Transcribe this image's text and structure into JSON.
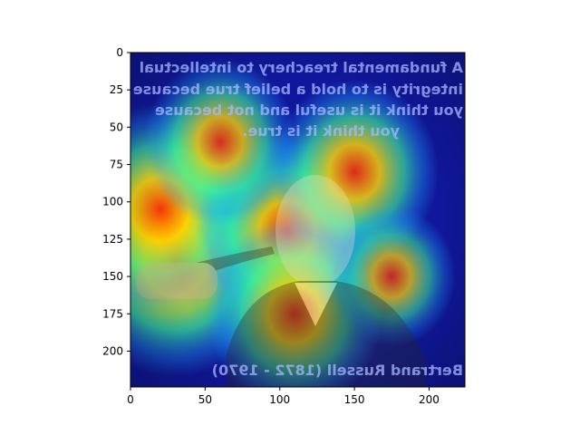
{
  "chart_data": {
    "type": "heatmap",
    "title": "",
    "xlabel": "",
    "ylabel": "",
    "xlim": [
      0,
      224
    ],
    "ylim": [
      224,
      0
    ],
    "x_ticks": [
      0,
      50,
      100,
      150,
      200
    ],
    "y_ticks": [
      0,
      25,
      50,
      75,
      100,
      125,
      150,
      175,
      200
    ],
    "grid": false,
    "colormap": "jet",
    "image_description": "Saliency heatmap (jet colormap) overlaid on a mirrored quote portrait of an elderly man holding a pipe",
    "image_text": [
      "A fundamental treachery to intellectual",
      "integrity is to hold a belief true because",
      "you think it is useful and not because",
      "you think it is true.",
      "Bertrand Russell (1872 - 1970)"
    ],
    "heat_regions": [
      {
        "x": 30,
        "y": 140,
        "intensity": 0.95
      },
      {
        "x": 20,
        "y": 105,
        "intensity": 0.85
      },
      {
        "x": 105,
        "y": 120,
        "intensity": 0.8
      },
      {
        "x": 150,
        "y": 80,
        "intensity": 0.7
      },
      {
        "x": 110,
        "y": 175,
        "intensity": 0.75
      },
      {
        "x": 60,
        "y": 60,
        "intensity": 0.6
      },
      {
        "x": 175,
        "y": 150,
        "intensity": 0.45
      }
    ]
  },
  "colors": {
    "heat_base": "#10179c",
    "heat_hot": "#ff2a00",
    "heat_warm": "#ffd400",
    "heat_mid": "#3cff9a",
    "heat_cool": "#1aa0ff",
    "text_overlay": "#a9b7ff"
  }
}
